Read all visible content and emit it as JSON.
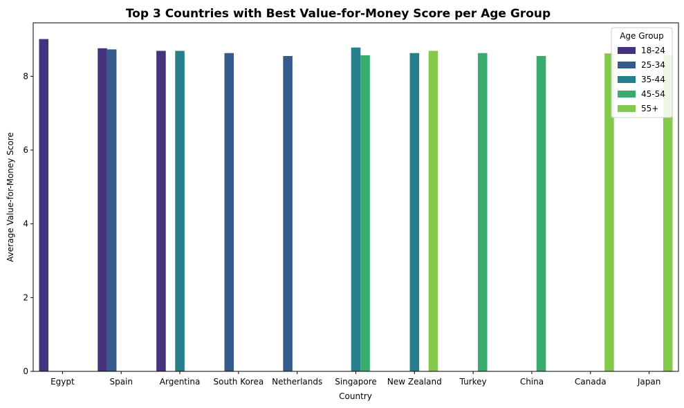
{
  "chart_data": {
    "type": "bar",
    "title": "Top 3 Countries with Best Value-for-Money Score per Age Group",
    "xlabel": "Country",
    "ylabel": "Average Value-for-Money Score",
    "ylim": [
      0,
      9.45
    ],
    "yticks": [
      0,
      2,
      4,
      6,
      8
    ],
    "categories": [
      "Egypt",
      "Spain",
      "Argentina",
      "South Korea",
      "Netherlands",
      "Singapore",
      "New Zealand",
      "Turkey",
      "China",
      "Canada",
      "Japan"
    ],
    "legend": {
      "title": "Age Group",
      "position": "top-right"
    },
    "grid": false,
    "series": [
      {
        "name": "18-24",
        "color": "#46337e",
        "values": [
          9.01,
          8.76,
          8.69,
          null,
          null,
          null,
          null,
          null,
          null,
          null,
          null
        ]
      },
      {
        "name": "25-34",
        "color": "#365c8d",
        "values": [
          null,
          8.73,
          null,
          8.63,
          8.55,
          null,
          null,
          null,
          null,
          null,
          null
        ]
      },
      {
        "name": "35-44",
        "color": "#277f8e",
        "values": [
          null,
          null,
          8.69,
          null,
          null,
          8.78,
          8.63,
          null,
          null,
          null,
          null
        ]
      },
      {
        "name": "45-54",
        "color": "#3aaa6f",
        "values": [
          null,
          null,
          null,
          null,
          null,
          8.57,
          null,
          8.63,
          8.55,
          null,
          null
        ]
      },
      {
        "name": "55+",
        "color": "#85c94c",
        "values": [
          null,
          null,
          null,
          null,
          null,
          null,
          8.69,
          null,
          null,
          8.62,
          8.57
        ]
      }
    ]
  }
}
